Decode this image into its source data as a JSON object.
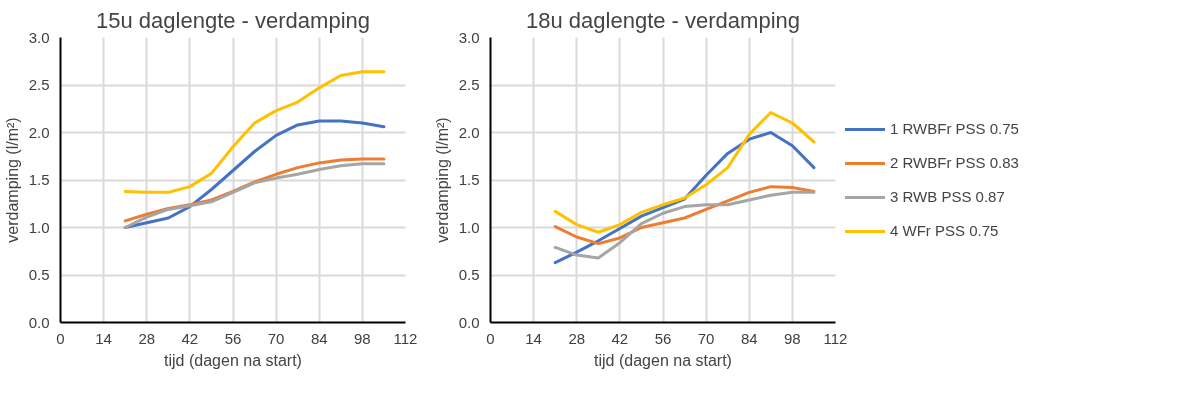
{
  "chart_data": [
    {
      "type": "line",
      "title": "15u daglengte - verdamping",
      "xlabel": "tijd (dagen na start)",
      "ylabel": "verdamping (l/m²)",
      "x": [
        21,
        28,
        35,
        42,
        49,
        56,
        63,
        70,
        77,
        84,
        91,
        98,
        105
      ],
      "series": [
        {
          "color": "#4472c4",
          "values": [
            1.0,
            1.05,
            1.1,
            1.22,
            1.4,
            1.6,
            1.8,
            1.97,
            2.08,
            2.12,
            2.12,
            2.1,
            2.06
          ]
        },
        {
          "color": "#ed7d31",
          "values": [
            1.07,
            1.14,
            1.2,
            1.24,
            1.29,
            1.38,
            1.48,
            1.56,
            1.63,
            1.68,
            1.71,
            1.72,
            1.72
          ]
        },
        {
          "color": "#a5a5a5",
          "values": [
            1.0,
            1.11,
            1.19,
            1.23,
            1.27,
            1.37,
            1.47,
            1.52,
            1.56,
            1.61,
            1.65,
            1.67,
            1.67
          ]
        },
        {
          "color": "#ffc000",
          "values": [
            1.38,
            1.37,
            1.37,
            1.43,
            1.57,
            1.85,
            2.1,
            2.23,
            2.32,
            2.47,
            2.6,
            2.64,
            2.64
          ]
        }
      ],
      "xlim": [
        0,
        112
      ],
      "xticks": [
        0,
        14,
        28,
        42,
        56,
        70,
        84,
        98,
        112
      ],
      "ylim": [
        0,
        3
      ],
      "yticks": [
        {
          "value": 0,
          "label": "0.0"
        },
        0.5,
        {
          "value": 1,
          "label": "1.0"
        },
        1.5,
        {
          "value": 2,
          "label": "2.0"
        },
        2.5,
        {
          "value": 3,
          "label": "3.0"
        }
      ],
      "grid": true,
      "line_style": "solid"
    },
    {
      "type": "line",
      "title": "18u daglengte - verdamping",
      "xlabel": "tijd (dagen na start)",
      "ylabel": "verdamping (l/m²)",
      "x": [
        21,
        28,
        35,
        42,
        49,
        56,
        63,
        70,
        77,
        84,
        91,
        98,
        105
      ],
      "series": [
        {
          "name": "1 RWBFr PSS 0.75",
          "color": "#4472c4",
          "values": [
            0.63,
            0.74,
            0.86,
            0.99,
            1.12,
            1.21,
            1.3,
            1.55,
            1.78,
            1.93,
            2.0,
            1.86,
            1.63
          ]
        },
        {
          "name": "2 RWBFr PSS 0.83",
          "color": "#ed7d31",
          "values": [
            1.01,
            0.9,
            0.83,
            0.89,
            1.0,
            1.05,
            1.1,
            1.19,
            1.28,
            1.37,
            1.43,
            1.42,
            1.38
          ]
        },
        {
          "name": "3 RWB PSS 0.87",
          "color": "#a5a5a5",
          "values": [
            0.79,
            0.71,
            0.68,
            0.84,
            1.04,
            1.15,
            1.22,
            1.24,
            1.24,
            1.29,
            1.34,
            1.37,
            1.37
          ]
        },
        {
          "name": "4 WFr PSS 0.75",
          "color": "#ffc000",
          "values": [
            1.17,
            1.03,
            0.95,
            1.03,
            1.16,
            1.24,
            1.31,
            1.45,
            1.63,
            1.98,
            2.21,
            2.1,
            1.9
          ]
        }
      ],
      "xlim": [
        0,
        112
      ],
      "xticks": [
        0,
        14,
        28,
        42,
        56,
        70,
        84,
        98,
        112
      ],
      "ylim": [
        0,
        3
      ],
      "yticks": [
        {
          "value": 0,
          "label": "0.0"
        },
        0.5,
        {
          "value": 1,
          "label": "1.0"
        },
        1.5,
        {
          "value": 2,
          "label": "2.0"
        },
        2.5,
        {
          "value": 3,
          "label": "3.0"
        }
      ],
      "grid": true,
      "legend": "right",
      "line_style": "solid"
    }
  ]
}
